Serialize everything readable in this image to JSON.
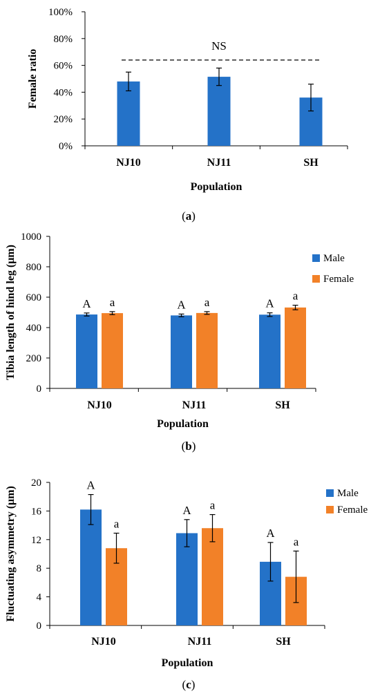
{
  "colors": {
    "male": "#2472c8",
    "female": "#f28128",
    "single": "#2472c8"
  },
  "panels": [
    {
      "id": "a",
      "panel_label": "(a)",
      "annotation": "NS",
      "legend": [],
      "chart_data": {
        "type": "bar",
        "categories": [
          "NJ10",
          "NJ11",
          "SH"
        ],
        "series": [
          {
            "name": "",
            "values": [
              48,
              51.5,
              36
            ],
            "errors": [
              7,
              6.5,
              10
            ],
            "color_key": "single"
          }
        ],
        "sig_labels": [],
        "xlabel": "Population",
        "ylabel": "Female ratio",
        "ylim": [
          0,
          100
        ],
        "yticks": [
          0,
          20,
          40,
          60,
          80,
          100
        ],
        "ytick_labels": [
          "0%",
          "20%",
          "40%",
          "60%",
          "80%",
          "100%"
        ],
        "reference_line": 64
      }
    },
    {
      "id": "b",
      "panel_label": "(b)",
      "annotation": "",
      "legend": [
        "Male",
        "Female"
      ],
      "chart_data": {
        "type": "bar",
        "categories": [
          "NJ10",
          "NJ11",
          "SH"
        ],
        "series": [
          {
            "name": "Male",
            "values": [
              486,
              480,
              485
            ],
            "errors": [
              10,
              9,
              12
            ],
            "color_key": "male"
          },
          {
            "name": "Female",
            "values": [
              495,
              496,
              532
            ],
            "errors": [
              10,
              9,
              15
            ],
            "color_key": "female"
          }
        ],
        "sig_labels": [
          [
            "A",
            "A",
            "A"
          ],
          [
            "a",
            "a",
            "a"
          ]
        ],
        "xlabel": "Population",
        "ylabel": "Tibia length of hind leg (μm)",
        "ylim": [
          0,
          1000
        ],
        "yticks": [
          0,
          200,
          400,
          600,
          800,
          1000
        ],
        "ytick_labels": [
          "0",
          "200",
          "400",
          "600",
          "800",
          "1000"
        ]
      }
    },
    {
      "id": "c",
      "panel_label": "(c)",
      "annotation": "",
      "legend": [
        "Male",
        "Female"
      ],
      "chart_data": {
        "type": "bar",
        "categories": [
          "NJ10",
          "NJ11",
          "SH"
        ],
        "series": [
          {
            "name": "Male",
            "values": [
              16.2,
              12.9,
              8.9
            ],
            "errors": [
              2.1,
              1.9,
              2.7
            ],
            "color_key": "male"
          },
          {
            "name": "Female",
            "values": [
              10.8,
              13.6,
              6.8
            ],
            "errors": [
              2.1,
              1.9,
              3.6
            ],
            "color_key": "female"
          }
        ],
        "sig_labels": [
          [
            "A",
            "A",
            "A"
          ],
          [
            "a",
            "a",
            "a"
          ]
        ],
        "xlabel": "Population",
        "ylabel": "Fluctuating asymmetry (μm)",
        "ylim": [
          0,
          20
        ],
        "yticks": [
          0,
          4,
          8,
          12,
          16,
          20
        ],
        "ytick_labels": [
          "0",
          "4",
          "8",
          "12",
          "16",
          "20"
        ]
      }
    }
  ]
}
